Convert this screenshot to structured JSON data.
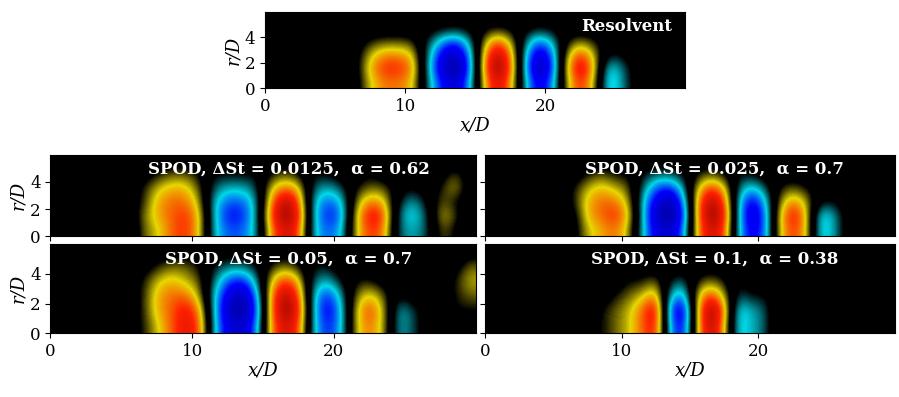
{
  "chart_data": [
    {
      "type": "heatmap",
      "title": "Resolvent",
      "xlabel": "x/D",
      "ylabel": "r/D",
      "x": [
        0.5,
        1.5,
        2.5,
        3.5,
        4.5,
        5.5,
        6.5,
        7.5,
        8.5,
        9.5,
        10.5,
        11.5,
        12.5,
        13.5,
        14.5,
        15.5,
        16.5,
        17.5,
        18.5,
        19.5,
        20.5,
        21.5,
        22.5,
        23.5,
        24.5,
        25.5,
        26.5,
        27.5,
        28.5,
        29.5
      ],
      "y": [
        0.5,
        1.5,
        2.5,
        3.5,
        4.5,
        5.5
      ],
      "cells": [
        [
          0,
          0,
          0,
          0,
          0,
          -0.12,
          0,
          0.32,
          0.48,
          0.48,
          0.4,
          -0.16,
          -0.56,
          -0.8,
          -0.48,
          0.24,
          0.8,
          0.48,
          -0.24,
          -0.72,
          -0.48,
          0.24,
          0.64,
          0.32,
          -0.45,
          -0.27,
          0,
          0,
          0,
          0
        ],
        [
          0,
          0,
          0,
          0,
          0,
          -0.02,
          0,
          0.4,
          0.6,
          0.6,
          0.5,
          -0.2,
          -0.7,
          -1,
          -0.6,
          0.3,
          1,
          0.6,
          -0.3,
          -0.9,
          -0.6,
          0.3,
          0.8,
          0.4,
          -0.4,
          -0.24,
          0,
          0,
          0,
          0
        ],
        [
          0,
          0,
          0,
          0,
          0,
          0,
          0,
          0.32,
          0.48,
          0.48,
          0.4,
          -0.18,
          -0.63,
          -0.9,
          -0.54,
          0.27,
          0.9,
          0.54,
          -0.27,
          -0.81,
          -0.54,
          0.24,
          0.64,
          0.32,
          -0.15,
          -0.09,
          0,
          0,
          0,
          0
        ],
        [
          0,
          0,
          0,
          0,
          0,
          0,
          0,
          0.14,
          0.21,
          0.21,
          0.18,
          -0.12,
          -0.42,
          -0.6,
          -0.36,
          0.18,
          0.6,
          0.36,
          -0.18,
          -0.54,
          -0.36,
          0.1,
          0.28,
          0.14,
          0,
          0,
          0,
          0,
          0,
          0
        ],
        [
          0,
          0,
          0,
          0,
          0,
          0,
          0,
          0,
          0,
          0,
          0,
          -0.03,
          -0.1,
          -0.15,
          -0.09,
          0.05,
          0.15,
          0.09,
          -0.05,
          -0.14,
          -0.09,
          0,
          0,
          0,
          0,
          0,
          0,
          0,
          0,
          0
        ],
        [
          0,
          0,
          0,
          0,
          0,
          0,
          0,
          0,
          0,
          0,
          0,
          0,
          0,
          0,
          0,
          0,
          0,
          0,
          0,
          0,
          0,
          0,
          0,
          0,
          0,
          0,
          0,
          0,
          0,
          0
        ]
      ],
      "clim": [
        -1,
        1
      ],
      "xlim": [
        0,
        30
      ],
      "ylim": [
        0,
        6
      ],
      "xticks": [
        0,
        10,
        20
      ],
      "yticks": [
        0,
        2,
        4
      ]
    },
    {
      "type": "heatmap",
      "title": "SPOD, ΔSt = 0.0125,  α = 0.62",
      "ylabel": "r/D",
      "tick_labels": "y",
      "x": [
        0.5,
        1.5,
        2.5,
        3.5,
        4.5,
        5.5,
        6.5,
        7.5,
        8.5,
        9.5,
        10.5,
        11.5,
        12.5,
        13.5,
        14.5,
        15.5,
        16.5,
        17.5,
        18.5,
        19.5,
        20.5,
        21.5,
        22.5,
        23.5,
        24.5,
        25.5,
        26.5,
        27.5,
        28.5,
        29.5
      ],
      "y": [
        0.5,
        1.5,
        2.5,
        3.5,
        4.5,
        5.5
      ],
      "cells": [
        [
          0,
          -0.1,
          0.1,
          -0.2,
          0.1,
          -0.2,
          0.2,
          0.3,
          0.5,
          0.6,
          0.4,
          -0.3,
          -0.5,
          -0.5,
          -0.3,
          0.4,
          0.8,
          0.6,
          -0.3,
          -0.5,
          -0.4,
          0.3,
          0.6,
          0.5,
          -0.2,
          -0.3,
          -0.2,
          0.2,
          0.1,
          -0.1
        ],
        [
          0,
          0,
          0.1,
          -0.1,
          0,
          -0.1,
          0.2,
          0.4,
          0.5,
          0.6,
          0.4,
          -0.3,
          -0.6,
          -0.6,
          -0.3,
          0.5,
          1,
          0.7,
          -0.3,
          -0.6,
          -0.5,
          0.3,
          0.7,
          0.6,
          -0.2,
          -0.4,
          -0.2,
          0.3,
          0.2,
          -0.1
        ],
        [
          0,
          0,
          0,
          0,
          0,
          0,
          0.1,
          0.4,
          0.5,
          0.5,
          0.3,
          -0.3,
          -0.5,
          -0.5,
          -0.3,
          0.4,
          0.9,
          0.6,
          -0.3,
          -0.5,
          -0.4,
          0.2,
          0.5,
          0.4,
          -0.1,
          -0.3,
          -0.1,
          0.2,
          0.1,
          0
        ],
        [
          0,
          0,
          0,
          0,
          0,
          0,
          0.1,
          0.3,
          0.4,
          0.4,
          0.2,
          -0.2,
          -0.3,
          -0.3,
          -0.2,
          0.3,
          0.5,
          0.4,
          -0.2,
          -0.3,
          -0.2,
          0.1,
          0.2,
          0.2,
          0,
          -0.1,
          0,
          0.1,
          0.3,
          0
        ],
        [
          0,
          0,
          0,
          0,
          0,
          0,
          0,
          0.1,
          0.2,
          0.2,
          0.1,
          -0.1,
          -0.1,
          -0.1,
          -0.1,
          0.1,
          0.2,
          0.1,
          -0.1,
          -0.1,
          0,
          0,
          0.1,
          0,
          0,
          0,
          0,
          0,
          0.2,
          0
        ],
        [
          0,
          0,
          0,
          0,
          0,
          0,
          0,
          0,
          0,
          0,
          0,
          0,
          0,
          0,
          0,
          0,
          0,
          0,
          0,
          0,
          0,
          0,
          0,
          0,
          0,
          0,
          0,
          0,
          0,
          0
        ]
      ],
      "clim": [
        -1,
        1
      ],
      "xlim": [
        0,
        30
      ],
      "ylim": [
        0,
        6
      ],
      "xticks": [
        0,
        10,
        20
      ],
      "yticks": [
        0,
        2,
        4
      ]
    },
    {
      "type": "heatmap",
      "title": "SPOD, ΔSt = 0.025,  α = 0.7",
      "tick_labels": false,
      "x": [
        0.5,
        1.5,
        2.5,
        3.5,
        4.5,
        5.5,
        6.5,
        7.5,
        8.5,
        9.5,
        10.5,
        11.5,
        12.5,
        13.5,
        14.5,
        15.5,
        16.5,
        17.5,
        18.5,
        19.5,
        20.5,
        21.5,
        22.5,
        23.5,
        24.5,
        25.5,
        26.5,
        27.5,
        28.5,
        29.5
      ],
      "y": [
        0.5,
        1.5,
        2.5,
        3.5,
        4.5,
        5.5
      ],
      "cells": [
        [
          0,
          0,
          0,
          0,
          0,
          -0.1,
          0,
          0.3,
          0.4,
          0.5,
          0.3,
          -0.3,
          -0.7,
          -0.8,
          -0.5,
          0.4,
          0.8,
          0.6,
          -0.3,
          -0.7,
          -0.5,
          0.3,
          0.6,
          0.4,
          -0.4,
          -0.3,
          0,
          0,
          0.1,
          0
        ],
        [
          0,
          0,
          0,
          0,
          0,
          0,
          0,
          0.4,
          0.5,
          0.6,
          0.4,
          -0.3,
          -0.8,
          -1,
          -0.6,
          0.4,
          1,
          0.7,
          -0.3,
          -0.8,
          -0.5,
          0.3,
          0.7,
          0.4,
          -0.4,
          -0.3,
          0,
          0,
          0.1,
          0
        ],
        [
          0,
          0,
          0,
          0,
          0,
          0,
          0.1,
          0.4,
          0.5,
          0.5,
          0.3,
          -0.3,
          -0.7,
          -0.9,
          -0.5,
          0.4,
          0.9,
          0.6,
          -0.3,
          -0.7,
          -0.4,
          0.2,
          0.5,
          0.3,
          -0.1,
          -0.1,
          0,
          0,
          0.1,
          0
        ],
        [
          0,
          0,
          0,
          0,
          0,
          0,
          0.1,
          0.3,
          0.4,
          0.3,
          0.2,
          -0.2,
          -0.5,
          -0.6,
          -0.3,
          0.3,
          0.6,
          0.4,
          -0.2,
          -0.4,
          -0.2,
          0.1,
          0.2,
          0.1,
          0,
          0,
          0,
          0,
          0,
          0
        ],
        [
          0,
          0,
          0,
          0,
          0,
          0,
          0,
          0.1,
          0.2,
          0.1,
          0.1,
          -0.1,
          -0.2,
          -0.2,
          -0.1,
          0.1,
          0.2,
          0.1,
          -0.1,
          -0.1,
          0,
          0,
          0,
          0,
          0,
          0,
          0,
          0,
          0,
          0
        ],
        [
          0,
          0,
          0,
          0,
          0,
          0,
          0,
          0,
          0,
          0,
          0,
          0,
          0,
          0,
          0,
          0,
          0,
          0,
          0,
          0,
          0,
          0,
          0,
          0,
          0,
          0,
          0,
          0,
          0,
          0
        ]
      ],
      "clim": [
        -1,
        1
      ],
      "xlim": [
        0,
        30
      ],
      "ylim": [
        0,
        6
      ],
      "xticks": [
        0,
        10,
        20
      ],
      "yticks": [
        0,
        2,
        4
      ]
    },
    {
      "type": "heatmap",
      "title": "SPOD, ΔSt = 0.05,  α = 0.7",
      "xlabel": "x/D",
      "ylabel": "r/D",
      "x": [
        0.5,
        1.5,
        2.5,
        3.5,
        4.5,
        5.5,
        6.5,
        7.5,
        8.5,
        9.5,
        10.5,
        11.5,
        12.5,
        13.5,
        14.5,
        15.5,
        16.5,
        17.5,
        18.5,
        19.5,
        20.5,
        21.5,
        22.5,
        23.5,
        24.5,
        25.5,
        26.5,
        27.5,
        28.5,
        29.5
      ],
      "y": [
        0.5,
        1.5,
        2.5,
        3.5,
        4.5,
        5.5
      ],
      "cells": [
        [
          0,
          0,
          0,
          0,
          0,
          0,
          0.1,
          0.3,
          0.5,
          0.7,
          0.6,
          -0.3,
          -0.7,
          -0.8,
          -0.5,
          0.4,
          0.8,
          0.6,
          -0.3,
          -0.6,
          -0.4,
          0.3,
          0.5,
          0.3,
          -0.3,
          -0.2,
          0,
          0,
          0,
          0
        ],
        [
          0,
          0,
          0,
          0,
          0,
          0,
          0.1,
          0.4,
          0.5,
          0.7,
          0.5,
          -0.3,
          -0.8,
          -1,
          -0.6,
          0.4,
          1,
          0.7,
          -0.3,
          -0.7,
          -0.4,
          0.3,
          0.6,
          0.3,
          -0.3,
          -0.2,
          0,
          0,
          0.1,
          0.1
        ],
        [
          0,
          0,
          0,
          0,
          0,
          0,
          0.1,
          0.4,
          0.5,
          0.5,
          0.3,
          -0.3,
          -0.7,
          -0.9,
          -0.5,
          0.4,
          0.9,
          0.6,
          -0.3,
          -0.6,
          -0.3,
          0.2,
          0.4,
          0.2,
          -0.1,
          0,
          0,
          0,
          0.1,
          0.2
        ],
        [
          0,
          0,
          0,
          0,
          0,
          0,
          0.1,
          0.3,
          0.4,
          0.3,
          0.2,
          -0.2,
          -0.5,
          -0.6,
          -0.3,
          0.3,
          0.6,
          0.4,
          -0.2,
          -0.3,
          -0.1,
          0.1,
          0.1,
          0,
          0,
          0,
          0,
          0,
          0.1,
          0.3
        ],
        [
          0,
          0,
          0,
          0,
          0,
          0,
          0,
          0.1,
          0.2,
          0.2,
          0.1,
          -0.1,
          -0.2,
          -0.2,
          -0.1,
          0.1,
          0.2,
          0.1,
          -0.1,
          -0.1,
          0,
          0,
          0,
          0,
          0,
          0,
          0,
          0,
          0,
          0.2
        ],
        [
          0,
          0,
          0,
          0,
          0,
          0,
          0,
          0,
          0,
          0,
          0,
          0,
          0,
          0,
          0,
          0,
          0,
          0,
          0,
          0,
          0,
          0,
          0,
          0,
          0,
          0,
          0,
          0,
          0,
          0
        ]
      ],
      "clim": [
        -1,
        1
      ],
      "xlim": [
        0,
        30
      ],
      "ylim": [
        0,
        6
      ],
      "xticks": [
        0,
        10,
        20
      ],
      "yticks": [
        0,
        2,
        4
      ]
    },
    {
      "type": "heatmap",
      "title": "SPOD, ΔSt = 0.1,  α = 0.38",
      "xlabel": "x/D",
      "tick_labels": "x",
      "x": [
        0.5,
        1.5,
        2.5,
        3.5,
        4.5,
        5.5,
        6.5,
        7.5,
        8.5,
        9.5,
        10.5,
        11.5,
        12.5,
        13.5,
        14.5,
        15.5,
        16.5,
        17.5,
        18.5,
        19.5,
        20.5,
        21.5,
        22.5,
        23.5,
        24.5,
        25.5,
        26.5,
        27.5,
        28.5,
        29.5
      ],
      "y": [
        0.5,
        1.5,
        2.5,
        3.5,
        4.5,
        5.5
      ],
      "cells": [
        [
          0,
          0,
          0,
          0,
          0,
          0,
          0,
          0,
          0.1,
          0.2,
          0.3,
          0.5,
          0.7,
          -0.4,
          -0.7,
          0.3,
          0.9,
          0.4,
          -0.4,
          -0.3,
          -0.2,
          0.1,
          0,
          -0.1,
          0,
          0,
          0,
          0,
          0,
          0
        ],
        [
          0,
          0,
          0,
          0,
          0,
          0,
          0,
          0,
          0.1,
          0.2,
          0.3,
          0.5,
          0.8,
          -0.5,
          -0.8,
          0.3,
          1,
          0.5,
          -0.4,
          -0.3,
          -0.2,
          0.1,
          0.1,
          -0.1,
          0,
          0,
          0,
          0,
          0,
          0
        ],
        [
          0,
          0,
          0,
          0,
          0,
          0,
          0,
          0,
          0,
          0.1,
          0.2,
          0.3,
          0.5,
          -0.3,
          -0.5,
          0.3,
          0.6,
          0.3,
          -0.2,
          -0.1,
          -0.1,
          0,
          0,
          0,
          0,
          0,
          0,
          0,
          0,
          0
        ],
        [
          0,
          0,
          0,
          0,
          0,
          0,
          0,
          0,
          0,
          0,
          0.1,
          0.1,
          0.2,
          -0.1,
          -0.2,
          0.1,
          0.2,
          0.1,
          -0.1,
          0,
          0,
          0,
          0,
          0,
          0,
          0,
          0,
          0,
          0,
          0
        ],
        [
          0,
          0,
          0,
          0,
          0,
          0,
          0,
          0,
          0,
          0,
          0,
          0,
          0,
          0,
          0,
          0,
          0,
          0,
          0,
          0,
          0,
          0,
          0,
          0,
          0,
          0,
          0,
          0,
          0,
          0
        ],
        [
          0,
          0,
          0,
          0,
          0,
          0,
          0,
          0,
          0,
          0,
          0,
          0,
          0,
          0,
          0,
          0,
          0,
          0,
          0,
          0,
          0,
          0,
          0,
          0,
          0,
          0,
          0,
          0,
          0,
          0
        ]
      ],
      "clim": [
        -1,
        1
      ],
      "xlim": [
        0,
        30
      ],
      "ylim": [
        0,
        6
      ],
      "xticks": [
        0,
        10,
        20
      ],
      "yticks": [
        0,
        2,
        4
      ]
    }
  ]
}
